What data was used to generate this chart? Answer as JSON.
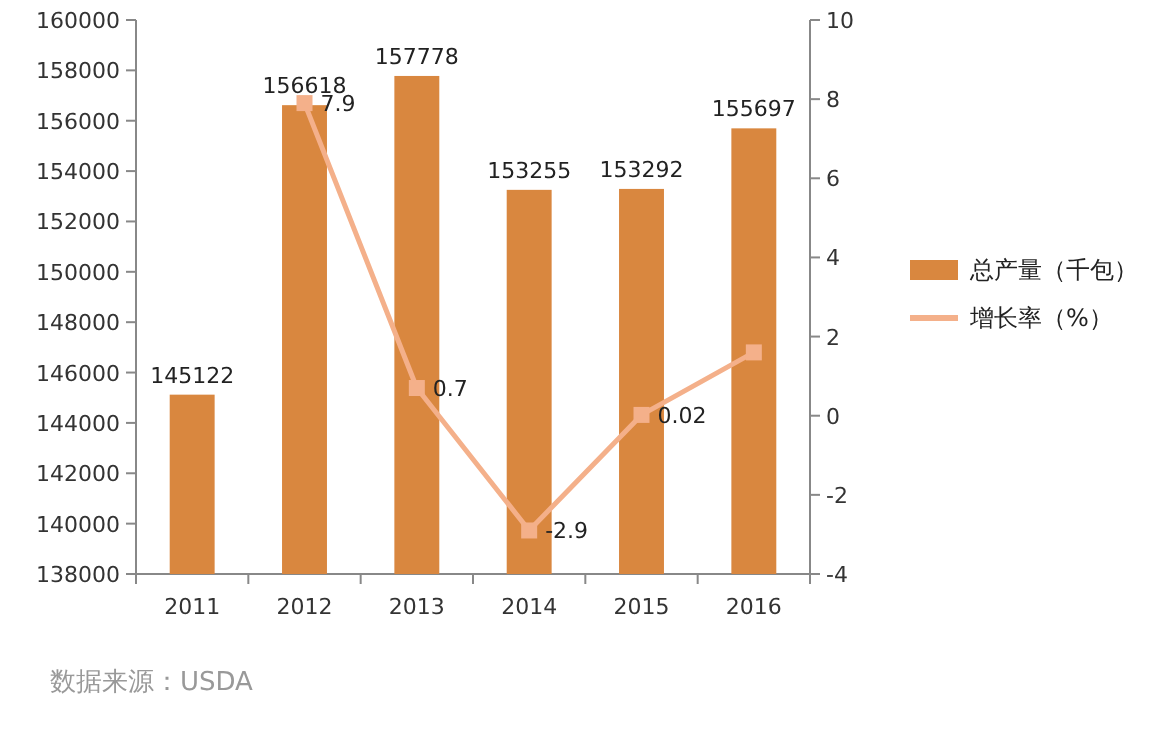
{
  "chart_data": {
    "type": "bar",
    "categories": [
      "2011",
      "2012",
      "2013",
      "2014",
      "2015",
      "2016"
    ],
    "series": [
      {
        "name": "总产量（千包）",
        "color": "#d9873f",
        "values": [
          145122,
          156618,
          157778,
          153255,
          153292,
          155697
        ],
        "value_labels": [
          "145122",
          "156618",
          "157778",
          "153255",
          "153292",
          "155697"
        ]
      },
      {
        "name": "增长率（%）",
        "type": "line",
        "axis": "y2",
        "color": "#f4b08a",
        "values": [
          null,
          7.9,
          0.7,
          -2.9,
          0.02,
          1.6
        ],
        "value_labels": [
          null,
          "7.9",
          "0.7",
          "-2.9",
          "0.02",
          null
        ]
      }
    ],
    "ylim": [
      138000,
      160000
    ],
    "yticks": [
      138000,
      140000,
      142000,
      144000,
      146000,
      148000,
      150000,
      152000,
      154000,
      156000,
      158000,
      160000
    ],
    "y2lim": [
      -4,
      10
    ],
    "y2ticks": [
      -4,
      -2,
      0,
      2,
      4,
      6,
      8,
      10
    ],
    "marker": "square",
    "legend": "right",
    "annotations": [
      "数据来源：USDA"
    ]
  }
}
